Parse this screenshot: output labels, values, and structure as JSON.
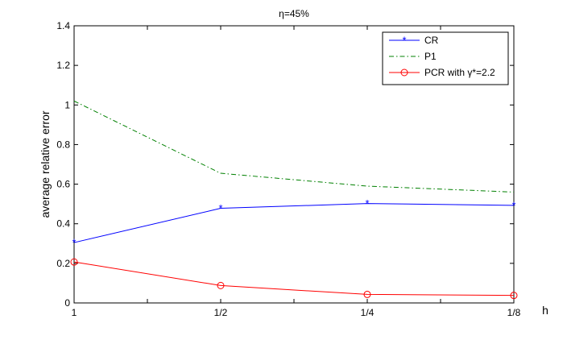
{
  "chart_data": {
    "type": "line",
    "title": "η=45%",
    "xlabel": "h",
    "ylabel": "average relative error",
    "categories": [
      "1",
      "1/2",
      "1/4",
      "1/8"
    ],
    "x_ticks": [
      "1",
      "",
      "1/2",
      "",
      "1/4",
      "",
      "1/8"
    ],
    "y_ticks": [
      "0",
      "0.2",
      "0.4",
      "0.6",
      "0.8",
      "1",
      "1.2",
      "1.4"
    ],
    "ylim": [
      0,
      1.4
    ],
    "grid": false,
    "legend_position": "top-right",
    "series": [
      {
        "name": "CR",
        "values": [
          0.305,
          0.478,
          0.502,
          0.493
        ],
        "color": "#0000ff",
        "line_style": "solid",
        "marker": "asterisk"
      },
      {
        "name": "P1",
        "values": [
          1.02,
          0.655,
          0.59,
          0.56
        ],
        "color": "#008000",
        "line_style": "dashdot",
        "marker": "none"
      },
      {
        "name": "PCR with γ*=2.2",
        "values": [
          0.207,
          0.088,
          0.043,
          0.038
        ],
        "color": "#ff0000",
        "line_style": "solid",
        "marker": "circle"
      }
    ]
  }
}
